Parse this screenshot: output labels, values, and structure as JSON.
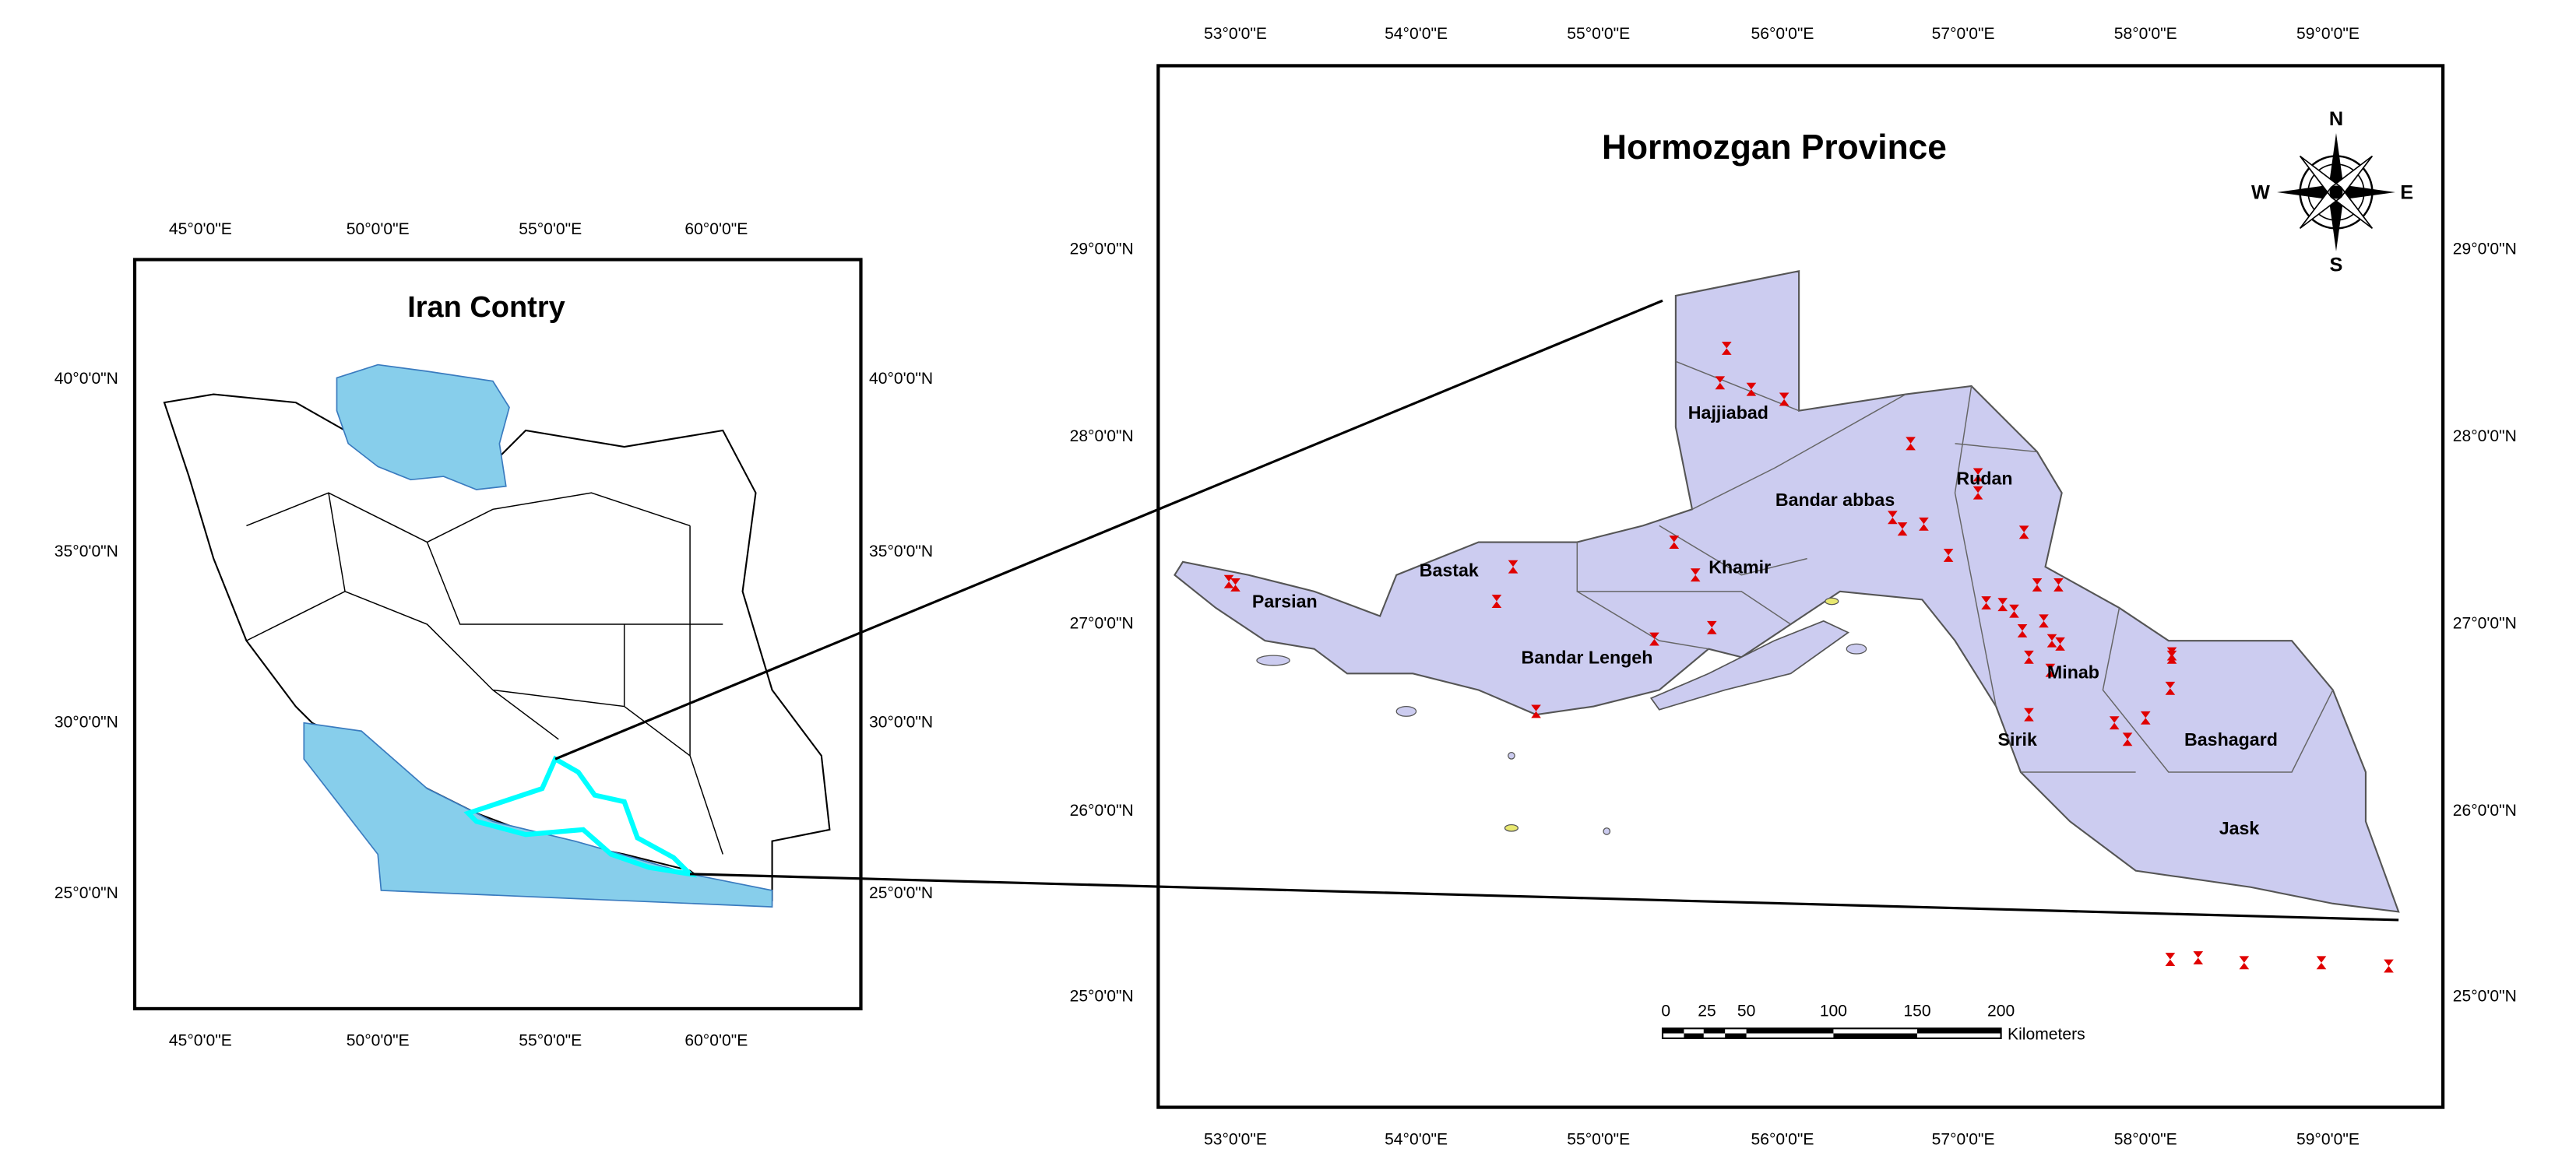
{
  "left_map": {
    "title": "Iran Contry",
    "top_labels": [
      "45°0'0\"E",
      "50°0'0\"E",
      "55°0'0\"E",
      "60°0'0\"E"
    ],
    "bottom_labels": [
      "45°0'0\"E",
      "50°0'0\"E",
      "55°0'0\"E",
      "60°0'0\"E"
    ],
    "left_labels": [
      "40°0'0\"N",
      "35°0'0\"N",
      "30°0'0\"N",
      "25°0'0\"N"
    ],
    "right_labels": [
      "40°0'0\"N",
      "35°0'0\"N",
      "30°0'0\"N",
      "25°0'0\"N"
    ]
  },
  "right_map": {
    "title": "Hormozgan Province",
    "top_labels": [
      "53°0'0\"E",
      "54°0'0\"E",
      "55°0'0\"E",
      "56°0'0\"E",
      "57°0'0\"E",
      "58°0'0\"E",
      "59°0'0\"E"
    ],
    "bottom_labels": [
      "53°0'0\"E",
      "54°0'0\"E",
      "55°0'0\"E",
      "56°0'0\"E",
      "57°0'0\"E",
      "58°0'0\"E",
      "59°0'0\"E"
    ],
    "left_labels": [
      "29°0'0\"N",
      "28°0'0\"N",
      "27°0'0\"N",
      "26°0'0\"N",
      "25°0'0\"N"
    ],
    "right_labels": [
      "29°0'0\"N",
      "28°0'0\"N",
      "27°0'0\"N",
      "26°0'0\"N",
      "25°0'0\"N"
    ],
    "places": [
      "Hajjiabad",
      "Rudan",
      "Bandar abbas",
      "Bastak",
      "Khamir",
      "Parsian",
      "Bandar Lengeh",
      "Minab",
      "Sirik",
      "Bashagard",
      "Jask"
    ],
    "scale_bar": {
      "ticks": [
        "0",
        "25",
        "50",
        "100",
        "150",
        "200"
      ],
      "unit": "Kilometers"
    },
    "compass": {
      "north": "N",
      "south": "S",
      "east": "E",
      "west": "W"
    }
  }
}
